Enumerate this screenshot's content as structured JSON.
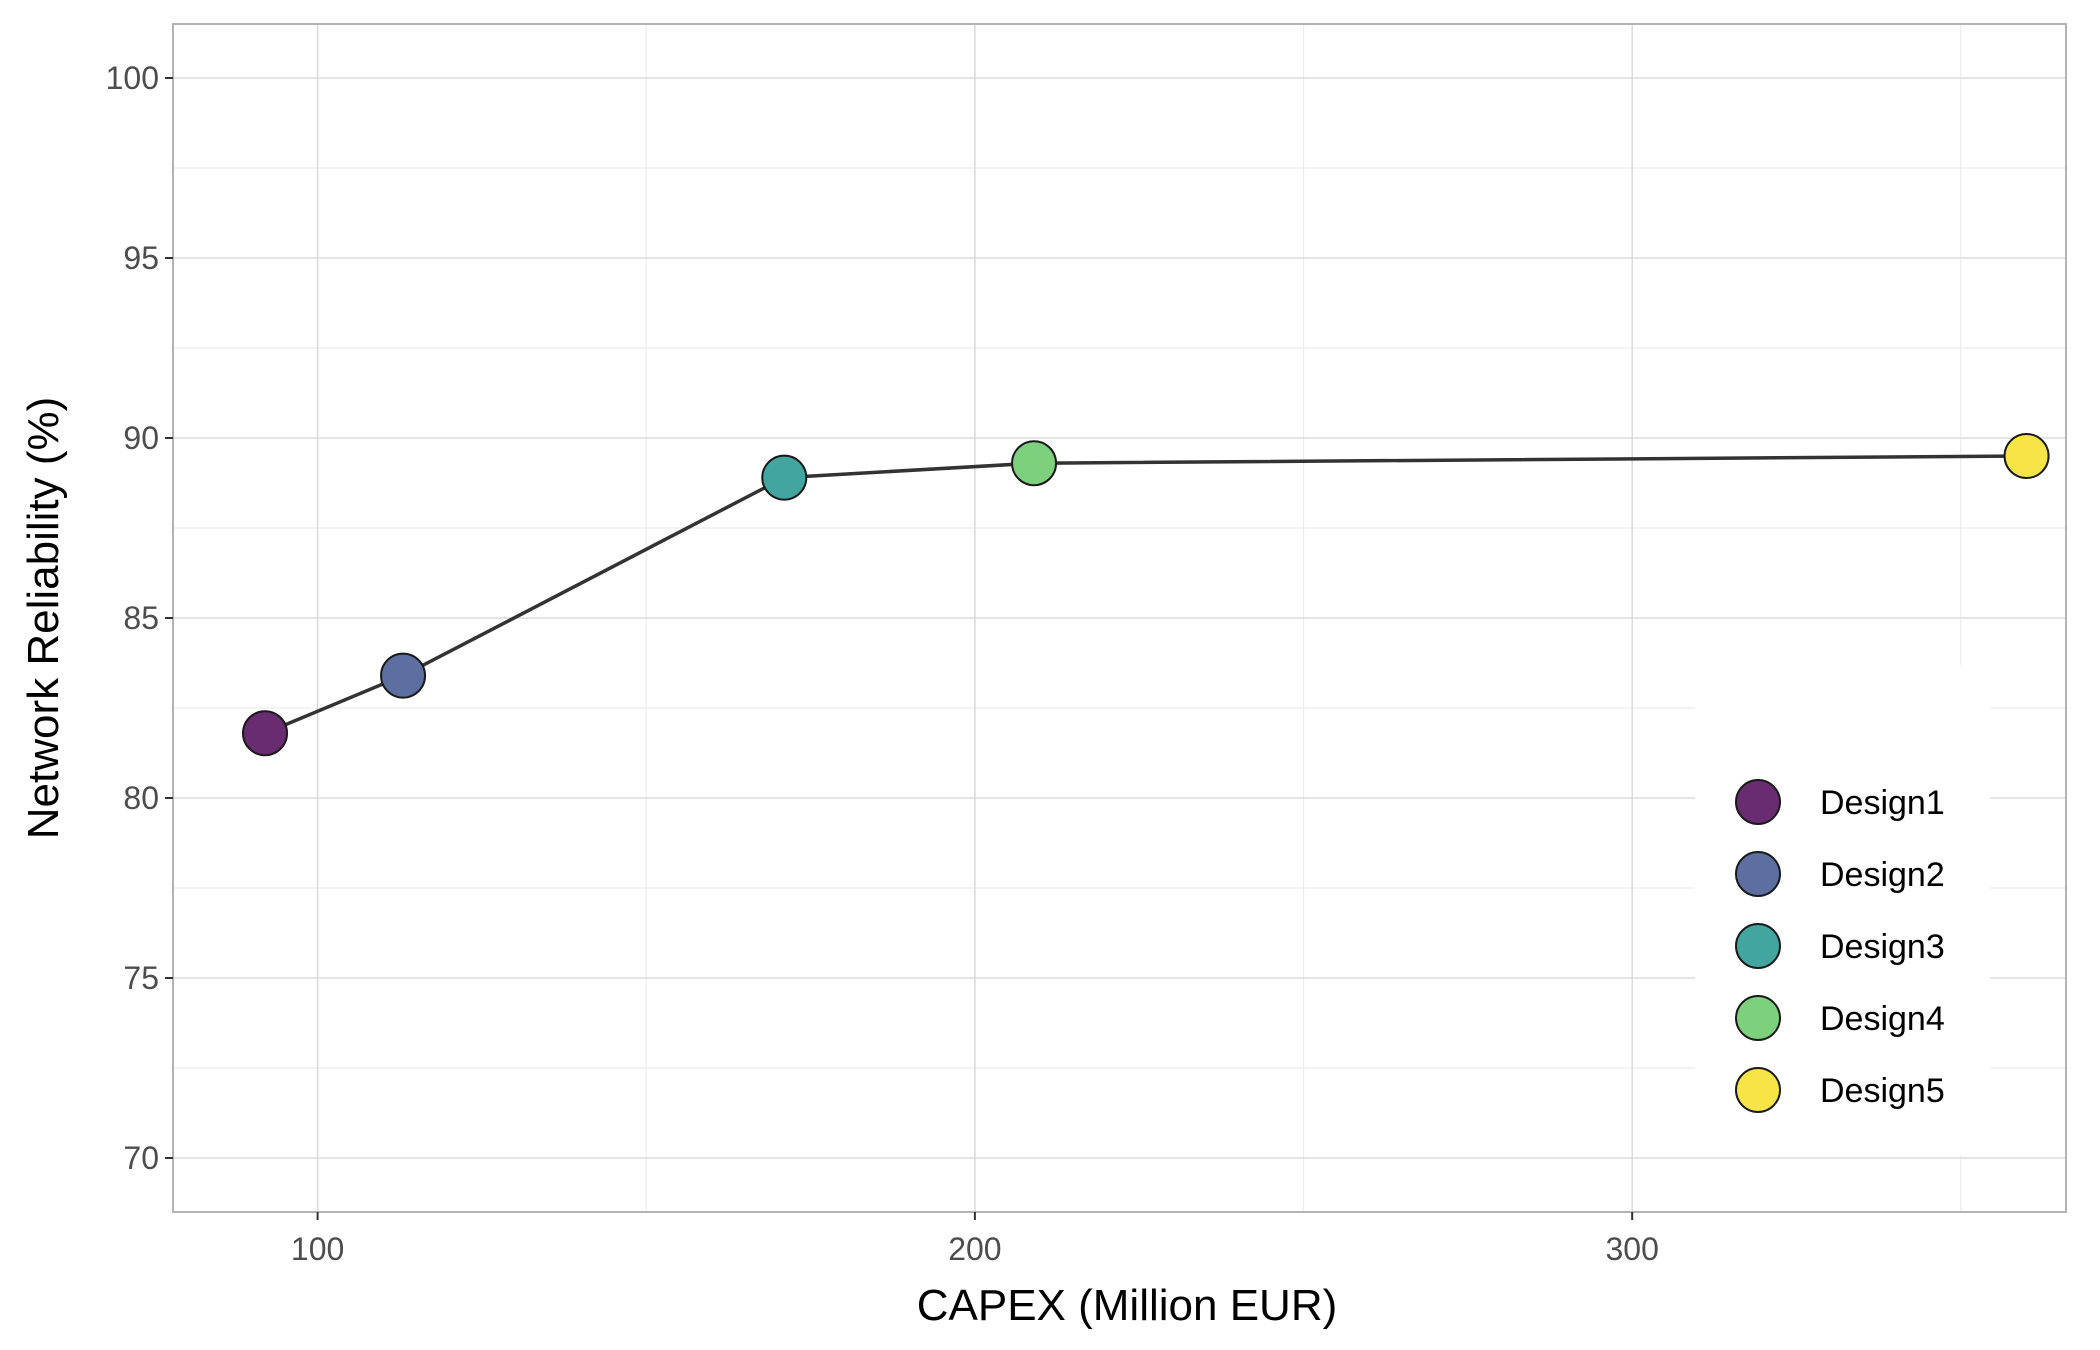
{
  "chart_data": {
    "type": "scatter",
    "xlabel": "CAPEX (Million EUR)",
    "ylabel": "Network Reliability (%)",
    "xlim": [
      78,
      366
    ],
    "ylim": [
      68.5,
      101.5
    ],
    "x_ticks": [
      100,
      200,
      300
    ],
    "x_minor_ticks": [
      150,
      250,
      350
    ],
    "y_ticks": [
      70,
      75,
      80,
      85,
      90,
      95,
      100
    ],
    "y_minor_ticks": [
      72.5,
      77.5,
      82.5,
      87.5,
      92.5,
      97.5
    ],
    "grid": true,
    "legend_position": "bottom-right",
    "connecting_line": true,
    "line_color": "#333333",
    "series": [
      {
        "name": "Design1",
        "x": 92,
        "y": 81.8,
        "color": "#6a2c70"
      },
      {
        "name": "Design2",
        "x": 113,
        "y": 83.4,
        "color": "#5c6fa0"
      },
      {
        "name": "Design3",
        "x": 171,
        "y": 88.9,
        "color": "#42a5a0"
      },
      {
        "name": "Design4",
        "x": 209,
        "y": 89.3,
        "color": "#7dd17d"
      },
      {
        "name": "Design5",
        "x": 360,
        "y": 89.5,
        "color": "#f7e547"
      }
    ]
  }
}
